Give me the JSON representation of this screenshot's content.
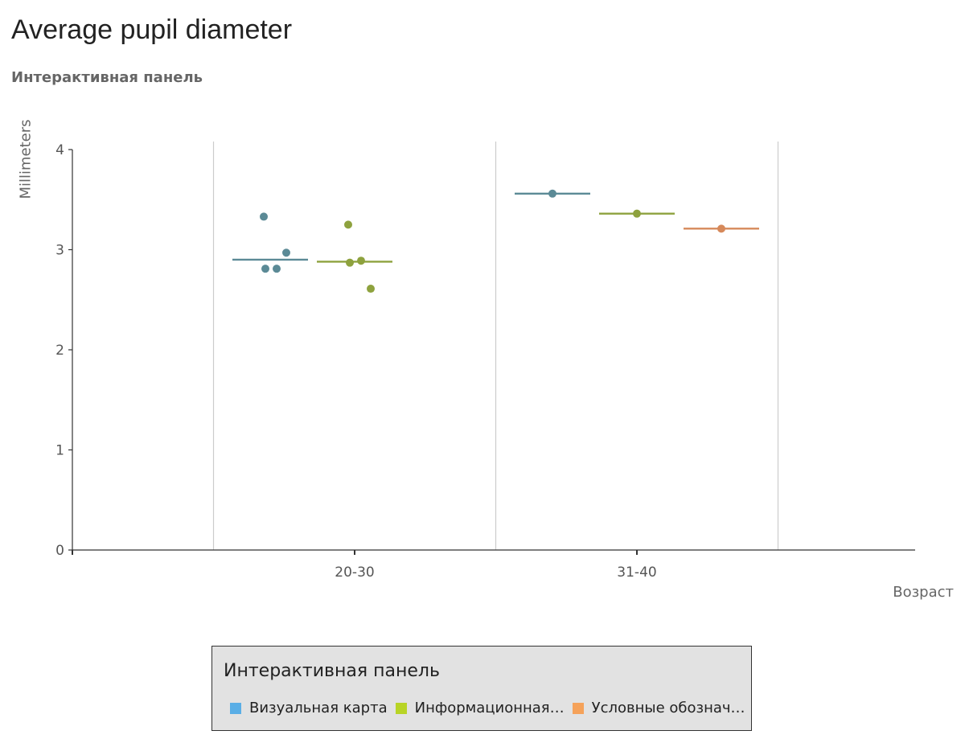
{
  "title": "Average pupil diameter",
  "subtitle": "Интерактивная панель",
  "chart_data": {
    "type": "scatter",
    "ylabel": "Millimeters",
    "xlabel": "Возраст",
    "categories": [
      "20-30",
      "31-40"
    ],
    "ylim": [
      0,
      4
    ],
    "yticks": [
      "0",
      "1",
      "2",
      "3",
      "4"
    ],
    "grid": "vertical separators between categories",
    "legend_position": "bottom",
    "legend_title": "Интерактивная панель",
    "series": [
      {
        "name": "Визуальная карта",
        "legend_label": "Визуальная карта",
        "color": "#5b8a96",
        "legend_color": "#5aaee6",
        "points": [
          {
            "category": "20-30",
            "values": [
              3.33,
              2.81,
              2.81,
              2.97
            ]
          },
          {
            "category": "31-40",
            "values": [
              3.56
            ]
          }
        ],
        "means": [
          2.9,
          3.56
        ]
      },
      {
        "name": "Информационная…",
        "legend_label": "Информационная…",
        "color": "#8ea23e",
        "legend_color": "#b8d426",
        "points": [
          {
            "category": "20-30",
            "values": [
              3.25,
              2.87,
              2.89,
              2.61
            ]
          },
          {
            "category": "31-40",
            "values": [
              3.36
            ]
          }
        ],
        "means": [
          2.88,
          3.36
        ]
      },
      {
        "name": "Условные обознач…",
        "legend_label": "Условные обознач…",
        "color": "#d6895a",
        "legend_color": "#f5a25a",
        "points": [
          {
            "category": "20-30",
            "values": []
          },
          {
            "category": "31-40",
            "values": [
              3.21
            ]
          }
        ],
        "means": [
          null,
          3.21
        ]
      }
    ]
  }
}
